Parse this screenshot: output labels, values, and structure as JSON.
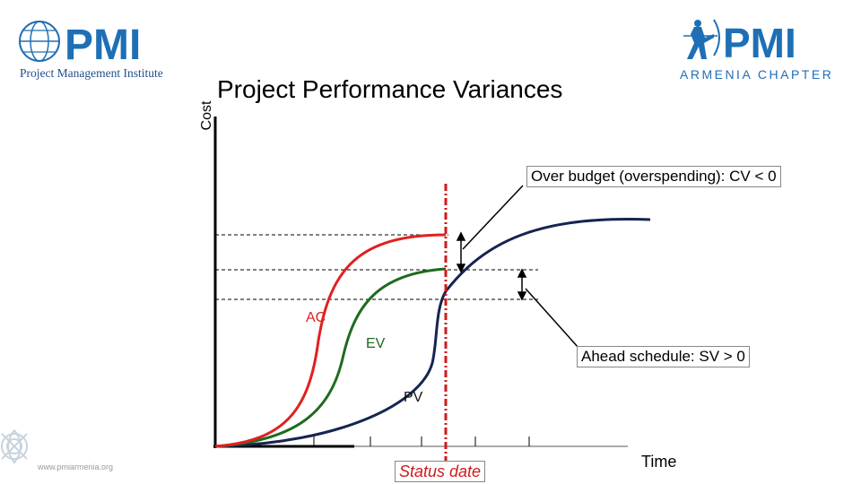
{
  "header": {
    "title": "Project Performance Variances"
  },
  "logos": {
    "left": {
      "name": "Project Management Institute",
      "mark": "PMI"
    },
    "right": {
      "name": "ARMENIA CHAPTER",
      "mark": "PMI"
    }
  },
  "diagram": {
    "y_axis_label": "Cost",
    "x_axis_label": "Time",
    "curves": [
      {
        "label": "AC",
        "color": "#e02020"
      },
      {
        "label": "EV",
        "color": "#1e6b1e"
      },
      {
        "label": "PV",
        "color": "#15254f"
      }
    ],
    "status_date_label": "Status date",
    "status_line_color": "#d01a1a",
    "annotations": {
      "cost_variance": "Over budget (overspending): CV < 0",
      "schedule_variance": "Ahead schedule: SV > 0"
    }
  },
  "footer": {
    "website": "www.pmiarmenia.org"
  }
}
